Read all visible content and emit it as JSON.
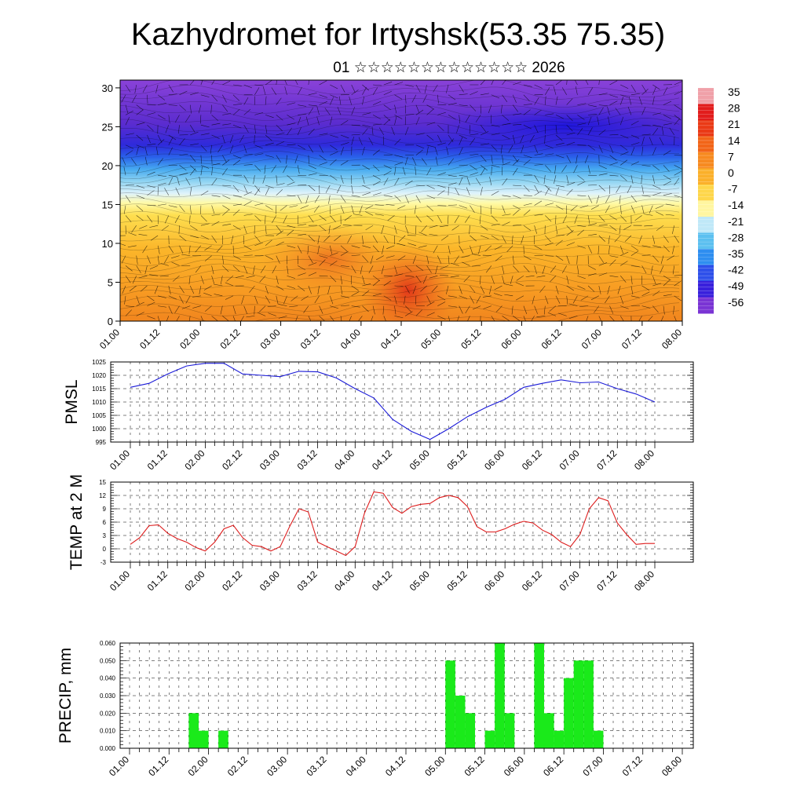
{
  "title": "Kazhydromet for Irtyshsk(53.35 75.35)",
  "subtitle": "01 ☆☆☆☆☆☆☆☆☆☆☆☆☆ 2026",
  "colorbar_labels": [
    "35",
    "28",
    "21",
    "14",
    "7",
    "0",
    "-7",
    "-14",
    "-21",
    "-28",
    "-35",
    "-42",
    "-49",
    "-56"
  ],
  "x_tick_labels": [
    "01.00",
    "01.12",
    "02.00",
    "02.12",
    "03.00",
    "03.12",
    "04.00",
    "04.12",
    "05.00",
    "05.12",
    "06.00",
    "06.12",
    "07.00",
    "07.12",
    "08.00"
  ],
  "chart_data": [
    {
      "type": "heatmap",
      "name": "upper-air cross-section (temperature with wind barbs)",
      "x": "time, 0-168 h (01.00 to 08.00)",
      "ylim": [
        0,
        31
      ],
      "y_ticks": [
        0,
        5,
        10,
        15,
        20,
        25,
        30
      ],
      "colorbar": {
        "levels": [
          35,
          28,
          21,
          14,
          7,
          0,
          -7,
          -14,
          -21,
          -28,
          -35,
          -42,
          -49,
          -56
        ]
      }
    },
    {
      "type": "line",
      "ylabel": "PMSL",
      "ylim": [
        995,
        1025
      ],
      "y_ticks": [
        995,
        1000,
        1005,
        1010,
        1015,
        1020,
        1025
      ],
      "x_hours": [
        0,
        6,
        12,
        18,
        24,
        30,
        36,
        42,
        48,
        54,
        60,
        66,
        72,
        78,
        84,
        90,
        96,
        102,
        108,
        114,
        120,
        126,
        132,
        138,
        144,
        150,
        156,
        162,
        168
      ],
      "values": [
        1015.5,
        1017,
        1020.5,
        1023.5,
        1024.5,
        1024.5,
        1020.5,
        1020,
        1019.5,
        1021.5,
        1021.3,
        1019,
        1015,
        1011.5,
        1003.5,
        999,
        996,
        1000,
        1004.5,
        1008,
        1011,
        1015.5,
        1017,
        1018.3,
        1017.2,
        1017.5,
        1015,
        1013,
        1010
      ]
    },
    {
      "type": "line",
      "ylabel": "TEMP at 2 M",
      "ylim": [
        -3,
        15
      ],
      "y_ticks": [
        -3,
        0,
        3,
        6,
        9,
        12,
        15
      ],
      "x_hours": [
        0,
        3,
        6,
        9,
        12,
        15,
        18,
        21,
        24,
        27,
        30,
        33,
        36,
        39,
        42,
        45,
        48,
        51,
        54,
        57,
        60,
        63,
        66,
        69,
        72,
        75,
        78,
        81,
        84,
        87,
        90,
        93,
        96,
        99,
        102,
        105,
        108,
        111,
        114,
        117,
        120,
        123,
        126,
        129,
        132,
        135,
        138,
        141,
        144,
        147,
        150,
        153,
        156,
        159,
        162,
        165,
        168
      ],
      "values": [
        1,
        2.5,
        5.2,
        5.4,
        3.5,
        2.3,
        1.5,
        0.3,
        -0.5,
        1.5,
        4.5,
        5.3,
        2.5,
        0.8,
        0.5,
        -0.5,
        0.5,
        5,
        9,
        8.3,
        1.5,
        0.5,
        -0.5,
        -1.5,
        0.5,
        8,
        12.8,
        12.5,
        9.3,
        8,
        9.5,
        10,
        10.2,
        11.5,
        12,
        11.5,
        9.5,
        5,
        3.8,
        3.8,
        4.5,
        5.5,
        6.2,
        5.8,
        4.2,
        3.2,
        1.5,
        0.5,
        3.2,
        9,
        11.5,
        10.8,
        5.8,
        3.2,
        1,
        1.2,
        1.2
      ]
    },
    {
      "type": "bar",
      "ylabel": "PRECIP, mm",
      "ylim": [
        0,
        0.06
      ],
      "y_ticks": [
        "0.000",
        "0.010",
        "0.020",
        "0.030",
        "0.040",
        "0.050",
        "0.060"
      ],
      "bar_width_hours": 3,
      "x_hours": [
        18,
        21,
        27,
        96,
        99,
        102,
        108,
        111,
        114,
        123,
        126,
        129,
        132,
        135,
        138,
        141
      ],
      "values": [
        0.02,
        0.01,
        0.01,
        0.05,
        0.03,
        0.02,
        0.01,
        0.06,
        0.02,
        0.06,
        0.02,
        0.01,
        0.04,
        0.05,
        0.05,
        0.01
      ]
    }
  ]
}
